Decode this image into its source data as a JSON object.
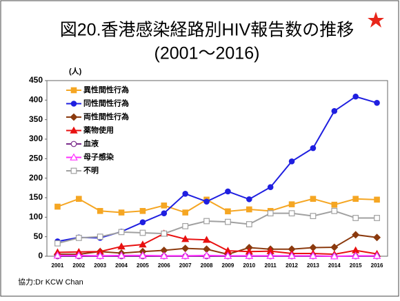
{
  "chart_data": {
    "type": "line",
    "title": "図20.香港感染経路別HIV報告数の推移",
    "subtitle": "(2001～2016)",
    "y_label": "(人)",
    "footnote": "協力:Dr KCW Chan",
    "categories": [
      "2001",
      "2002",
      "2003",
      "2004",
      "2005",
      "2006",
      "2007",
      "2008",
      "2009",
      "2010",
      "2011",
      "2012",
      "2013",
      "2014",
      "2015",
      "2016"
    ],
    "ylim": [
      0,
      450
    ],
    "yticks": [
      0,
      50,
      100,
      150,
      200,
      250,
      300,
      350,
      400,
      450
    ],
    "grid": false,
    "legend": "upper left",
    "series": [
      {
        "name": "異性間性行為",
        "color": "#f5a623",
        "marker": "square",
        "values": [
          127,
          147,
          116,
          112,
          116,
          130,
          112,
          145,
          115,
          120,
          116,
          133,
          147,
          132,
          147,
          145
        ]
      },
      {
        "name": "同性間性行為",
        "color": "#1f1fe0",
        "marker": "circle",
        "values": [
          38,
          48,
          47,
          63,
          87,
          110,
          160,
          140,
          166,
          146,
          177,
          243,
          277,
          372,
          409,
          393
        ]
      },
      {
        "name": "両性間性行為",
        "color": "#8b3a0e",
        "marker": "diamond",
        "values": [
          5,
          5,
          12,
          8,
          12,
          15,
          20,
          18,
          5,
          22,
          18,
          18,
          22,
          23,
          55,
          48
        ]
      },
      {
        "name": "薬物使用",
        "color": "#e81010",
        "marker": "triangle",
        "values": [
          10,
          11,
          12,
          25,
          30,
          58,
          44,
          42,
          14,
          12,
          13,
          7,
          7,
          5,
          15,
          6
        ]
      },
      {
        "name": "血液",
        "color": "#7a2a8a",
        "marker": "open-circle",
        "values": [
          0,
          0,
          0,
          0,
          0,
          0,
          0,
          0,
          0,
          0,
          0,
          0,
          0,
          0,
          0,
          0
        ]
      },
      {
        "name": "母子感染",
        "color": "#ff30ff",
        "marker": "open-triangle",
        "values": [
          2,
          2,
          1,
          2,
          2,
          1,
          1,
          2,
          1,
          1,
          1,
          1,
          1,
          0,
          1,
          1
        ]
      },
      {
        "name": "不明",
        "color": "#a0a0a0",
        "marker": "open-square",
        "values": [
          33,
          47,
          50,
          62,
          60,
          58,
          77,
          90,
          88,
          82,
          110,
          110,
          103,
          116,
          98,
          98
        ]
      }
    ]
  }
}
